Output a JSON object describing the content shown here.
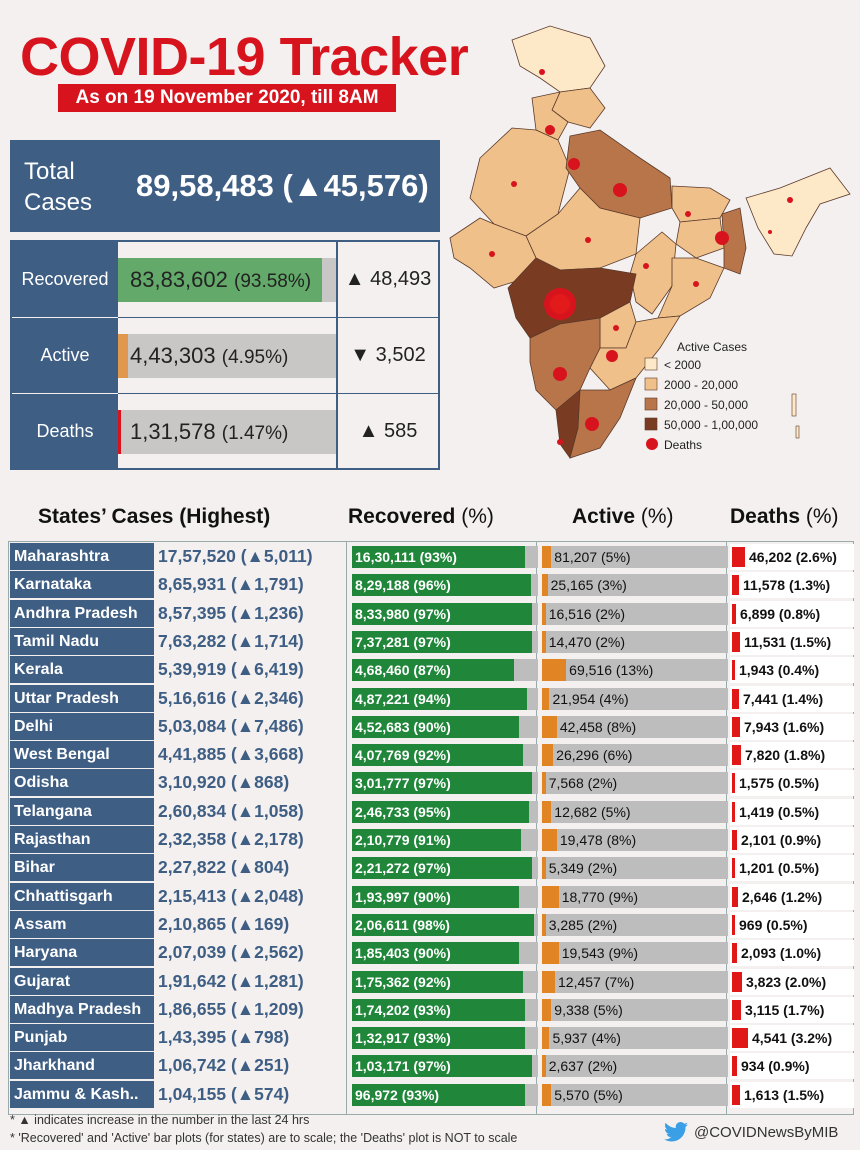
{
  "header": {
    "title": "COVID-19 Tracker",
    "subtitle": "As on 19 November 2020, till 8AM"
  },
  "total": {
    "label_line1": "Total",
    "label_line2": "Cases",
    "value": "89,58,483",
    "delta": "(▲45,576)"
  },
  "summary": {
    "recovered": {
      "label": "Recovered",
      "value": "83,83,602",
      "pct_text": "(93.58%)",
      "pct": 93.58,
      "delta": "▲ 48,493"
    },
    "active": {
      "label": "Active",
      "value": "4,43,303",
      "pct_text": "(4.95%)",
      "pct": 4.95,
      "delta": "▼ 3,502"
    },
    "deaths": {
      "label": "Deaths",
      "value": "1,31,578",
      "pct_text": "(1.47%)",
      "pct": 1.47,
      "delta": "▲ 585"
    }
  },
  "legend": {
    "title": "Active Cases",
    "items": [
      "< 2000",
      "2000 - 20,000",
      "20,000 - 50,000",
      "50,000 - 1,00,000"
    ],
    "deaths_label": "Deaths",
    "colors": [
      "#fde8c8",
      "#f0c08a",
      "#b9754a",
      "#7a3b23"
    ]
  },
  "table_headers": {
    "states": "States’ Cases (Highest)",
    "recovered": "Recovered",
    "active": "Active",
    "deaths": "Deaths",
    "pct": "(%)"
  },
  "colors": {
    "navy": "#3e5e84",
    "red": "#d7141e",
    "recovered_green": "#20873a",
    "active_orange": "#e08424",
    "deaths_red": "#e01818",
    "bar_gray": "#bdbdbd"
  },
  "chart_data": {
    "type": "table",
    "title": "States’ Cases (Highest)",
    "columns": [
      "State",
      "Total Cases",
      "Recovered",
      "Active",
      "Deaths"
    ],
    "rows": [
      {
        "state": "Maharashtra",
        "cases": "17,57,520 (▲5,011)",
        "recovered": "16,30,111 (93%)",
        "rec_pct": 93,
        "active": "81,207 (5%)",
        "act_pct": 5,
        "deaths": "46,202 (2.6%)",
        "death_pct": 2.6
      },
      {
        "state": "Karnataka",
        "cases": "8,65,931 (▲1,791)",
        "recovered": "8,29,188 (96%)",
        "rec_pct": 96,
        "active": "25,165 (3%)",
        "act_pct": 3,
        "deaths": "11,578 (1.3%)",
        "death_pct": 1.3
      },
      {
        "state": "Andhra Pradesh",
        "cases": "8,57,395 (▲1,236)",
        "recovered": "8,33,980 (97%)",
        "rec_pct": 97,
        "active": "16,516 (2%)",
        "act_pct": 2,
        "deaths": "6,899 (0.8%)",
        "death_pct": 0.8
      },
      {
        "state": "Tamil Nadu",
        "cases": "7,63,282 (▲1,714)",
        "recovered": "7,37,281 (97%)",
        "rec_pct": 97,
        "active": "14,470 (2%)",
        "act_pct": 2,
        "deaths": "11,531 (1.5%)",
        "death_pct": 1.5
      },
      {
        "state": "Kerala",
        "cases": "5,39,919 (▲6,419)",
        "recovered": "4,68,460 (87%)",
        "rec_pct": 87,
        "active": "69,516 (13%)",
        "act_pct": 13,
        "deaths": "1,943 (0.4%)",
        "death_pct": 0.4
      },
      {
        "state": "Uttar Pradesh",
        "cases": "5,16,616 (▲2,346)",
        "recovered": "4,87,221 (94%)",
        "rec_pct": 94,
        "active": "21,954 (4%)",
        "act_pct": 4,
        "deaths": "7,441 (1.4%)",
        "death_pct": 1.4
      },
      {
        "state": "Delhi",
        "cases": "5,03,084 (▲7,486)",
        "recovered": "4,52,683 (90%)",
        "rec_pct": 90,
        "active": "42,458 (8%)",
        "act_pct": 8,
        "deaths": "7,943 (1.6%)",
        "death_pct": 1.6
      },
      {
        "state": "West Bengal",
        "cases": "4,41,885 (▲3,668)",
        "recovered": "4,07,769 (92%)",
        "rec_pct": 92,
        "active": "26,296 (6%)",
        "act_pct": 6,
        "deaths": "7,820 (1.8%)",
        "death_pct": 1.8
      },
      {
        "state": "Odisha",
        "cases": "3,10,920 (▲868)",
        "recovered": "3,01,777 (97%)",
        "rec_pct": 97,
        "active": "7,568 (2%)",
        "act_pct": 2,
        "deaths": "1,575 (0.5%)",
        "death_pct": 0.5
      },
      {
        "state": "Telangana",
        "cases": "2,60,834 (▲1,058)",
        "recovered": "2,46,733 (95%)",
        "rec_pct": 95,
        "active": "12,682 (5%)",
        "act_pct": 5,
        "deaths": "1,419 (0.5%)",
        "death_pct": 0.5
      },
      {
        "state": "Rajasthan",
        "cases": "2,32,358 (▲2,178)",
        "recovered": "2,10,779 (91%)",
        "rec_pct": 91,
        "active": "19,478 (8%)",
        "act_pct": 8,
        "deaths": "2,101 (0.9%)",
        "death_pct": 0.9
      },
      {
        "state": "Bihar",
        "cases": "2,27,822 (▲804)",
        "recovered": "2,21,272 (97%)",
        "rec_pct": 97,
        "active": "5,349 (2%)",
        "act_pct": 2,
        "deaths": "1,201 (0.5%)",
        "death_pct": 0.5
      },
      {
        "state": "Chhattisgarh",
        "cases": "2,15,413 (▲2,048)",
        "recovered": "1,93,997 (90%)",
        "rec_pct": 90,
        "active": "18,770 (9%)",
        "act_pct": 9,
        "deaths": "2,646 (1.2%)",
        "death_pct": 1.2
      },
      {
        "state": "Assam",
        "cases": "2,10,865 (▲169)",
        "recovered": "2,06,611 (98%)",
        "rec_pct": 98,
        "active": "3,285 (2%)",
        "act_pct": 2,
        "deaths": "969 (0.5%)",
        "death_pct": 0.5
      },
      {
        "state": "Haryana",
        "cases": "2,07,039 (▲2,562)",
        "recovered": "1,85,403 (90%)",
        "rec_pct": 90,
        "active": "19,543 (9%)",
        "act_pct": 9,
        "deaths": "2,093 (1.0%)",
        "death_pct": 1.0
      },
      {
        "state": "Gujarat",
        "cases": "1,91,642 (▲1,281)",
        "recovered": "1,75,362 (92%)",
        "rec_pct": 92,
        "active": "12,457 (7%)",
        "act_pct": 7,
        "deaths": "3,823 (2.0%)",
        "death_pct": 2.0
      },
      {
        "state": "Madhya Pradesh",
        "cases": "1,86,655 (▲1,209)",
        "recovered": "1,74,202 (93%)",
        "rec_pct": 93,
        "active": "9,338 (5%)",
        "act_pct": 5,
        "deaths": "3,115 (1.7%)",
        "death_pct": 1.7
      },
      {
        "state": "Punjab",
        "cases": "1,43,395 (▲798)",
        "recovered": "1,32,917 (93%)",
        "rec_pct": 93,
        "active": "5,937 (4%)",
        "act_pct": 4,
        "deaths": "4,541 (3.2%)",
        "death_pct": 3.2
      },
      {
        "state": "Jharkhand",
        "cases": "1,06,742 (▲251)",
        "recovered": "1,03,171 (97%)",
        "rec_pct": 97,
        "active": "2,637 (2%)",
        "act_pct": 2,
        "deaths": "934 (0.9%)",
        "death_pct": 0.9
      },
      {
        "state": "Jammu & Kash..",
        "cases": "1,04,155 (▲574)",
        "recovered": "96,972 (93%)",
        "rec_pct": 93,
        "active": "5,570 (5%)",
        "act_pct": 5,
        "deaths": "1,613 (1.5%)",
        "death_pct": 1.5
      }
    ]
  },
  "footnotes": [
    "* ▲ indicates increase in the number in the last 24 hrs",
    "* 'Recovered' and 'Active' bar plots (for states) are to scale; the 'Deaths' plot is NOT to scale"
  ],
  "handle": "@COVIDNewsByMIB"
}
